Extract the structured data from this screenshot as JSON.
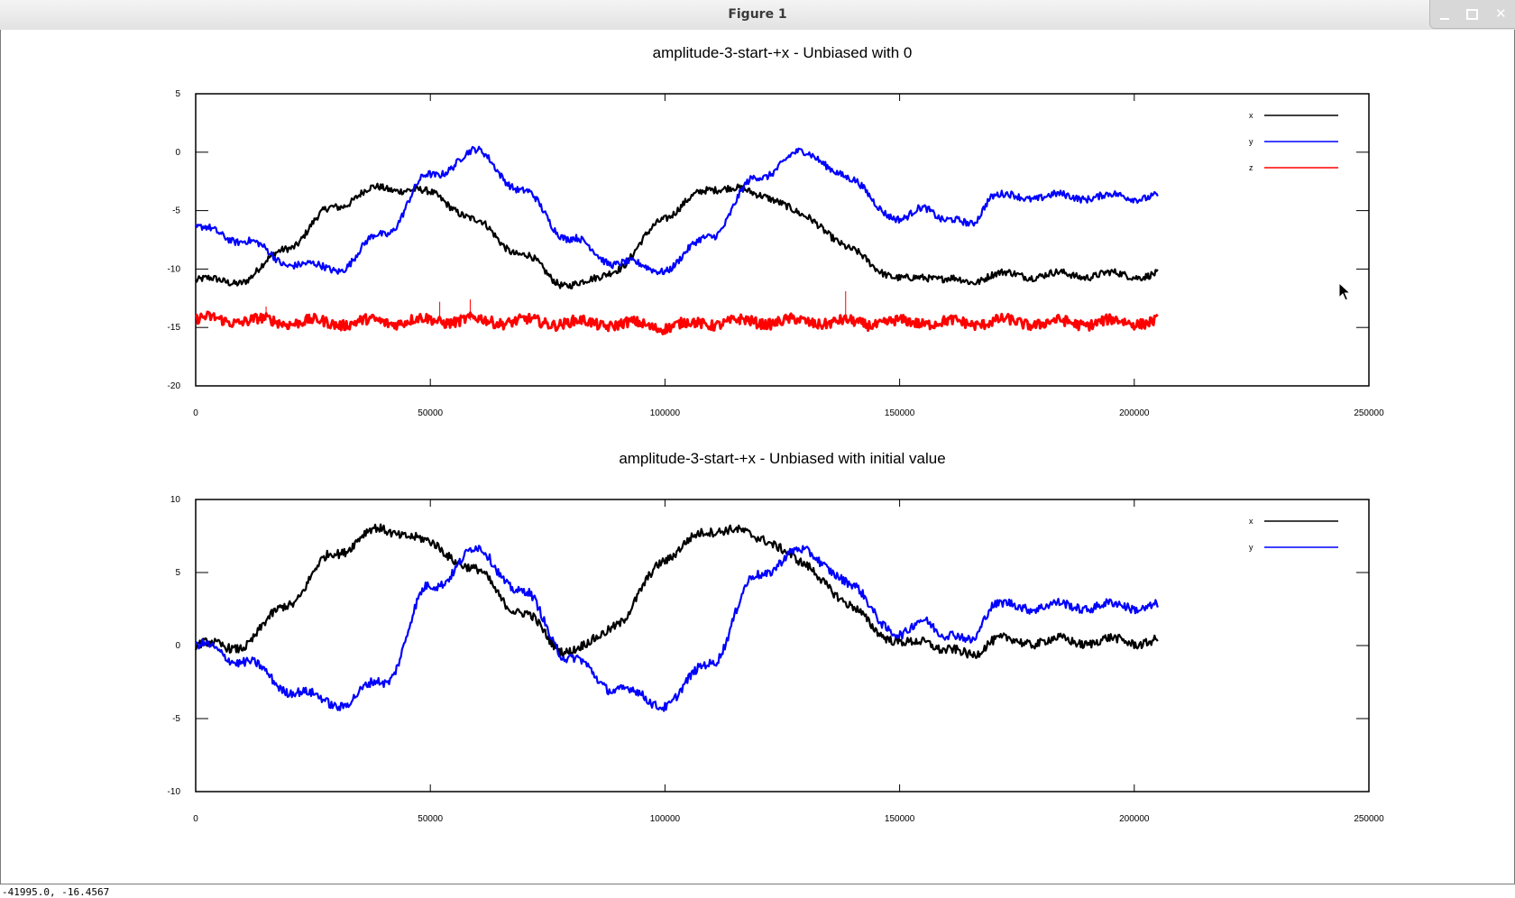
{
  "window": {
    "title": "Figure 1",
    "buttons": [
      "minimize",
      "maximize",
      "close"
    ]
  },
  "status_bar": {
    "coordinates": "-41995.0, -16.4567"
  },
  "colors": {
    "x": "#000000",
    "y": "#0000ff",
    "z": "#ff0000"
  },
  "chart_data": [
    {
      "type": "line",
      "title": "amplitude-3-start-+x - Unbiased with 0",
      "xlabel": "",
      "ylabel": "",
      "xlim": [
        0,
        250000
      ],
      "ylim": [
        -20,
        5
      ],
      "xticks": [
        "0",
        "50000",
        "100000",
        "150000",
        "200000",
        "250000"
      ],
      "yticks": [
        "5",
        "0",
        "-5",
        "-10",
        "-15",
        "-20"
      ],
      "legend": {
        "position": "top-right",
        "entries": [
          "x",
          "y",
          "z"
        ]
      },
      "grid": false,
      "x": [
        0,
        10000,
        20000,
        30000,
        40000,
        50000,
        60000,
        70000,
        80000,
        90000,
        100000,
        110000,
        120000,
        130000,
        140000,
        150000,
        155000,
        160000,
        165000,
        170000,
        180000,
        190000,
        200000,
        205000
      ],
      "series": [
        {
          "name": "x",
          "values": [
            -11,
            -11,
            -8,
            -4.5,
            -3,
            -3.5,
            -6,
            -9,
            -11.5,
            -10,
            -5.5,
            -3,
            -3.5,
            -5.5,
            -8.5,
            -11,
            -10.5,
            -11,
            -11,
            -10.5,
            -10.5,
            -10.5,
            -10.5,
            -10.5
          ]
        },
        {
          "name": "y",
          "values": [
            -6.5,
            -7.5,
            -9.5,
            -10,
            -7,
            -2,
            0,
            -3.5,
            -7.5,
            -9.5,
            -10,
            -7,
            -2,
            0,
            -2.5,
            -6,
            -4.5,
            -6,
            -6,
            -3.8,
            -3.8,
            -3.8,
            -3.8,
            -3.8
          ]
        },
        {
          "name": "z",
          "values": [
            -14.3,
            -14.4,
            -14.5,
            -14.6,
            -14.5,
            -14.4,
            -14.4,
            -14.5,
            -14.6,
            -14.7,
            -14.9,
            -14.6,
            -14.5,
            -14.5,
            -14.6,
            -14.6,
            -14.5,
            -14.6,
            -14.6,
            -14.5,
            -14.6,
            -14.6,
            -14.5,
            -14.5
          ]
        }
      ],
      "spikes": [
        {
          "series": "z",
          "x": 15000,
          "y": -13.2
        },
        {
          "series": "z",
          "x": 52000,
          "y": -12.8
        },
        {
          "series": "z",
          "x": 58500,
          "y": -12.6
        },
        {
          "series": "z",
          "x": 138500,
          "y": -11.9
        }
      ]
    },
    {
      "type": "line",
      "title": "amplitude-3-start-+x - Unbiased with initial value",
      "xlabel": "",
      "ylabel": "",
      "xlim": [
        0,
        250000
      ],
      "ylim": [
        -10,
        10
      ],
      "xticks": [
        "0",
        "50000",
        "100000",
        "150000",
        "200000",
        "250000"
      ],
      "yticks": [
        "10",
        "5",
        "0",
        "-5",
        "-10"
      ],
      "legend": {
        "position": "top-right",
        "entries": [
          "x",
          "y"
        ]
      },
      "grid": false,
      "x": [
        0,
        10000,
        20000,
        30000,
        40000,
        50000,
        60000,
        70000,
        80000,
        90000,
        100000,
        110000,
        120000,
        130000,
        140000,
        150000,
        155000,
        160000,
        165000,
        170000,
        180000,
        190000,
        200000,
        205000
      ],
      "series": [
        {
          "name": "x",
          "values": [
            0,
            0,
            3,
            6.5,
            8,
            7,
            5,
            2,
            -0.5,
            1.5,
            6,
            8,
            7.5,
            5.5,
            2.5,
            0,
            0.5,
            -0.5,
            -0.5,
            0.3,
            0.3,
            0.3,
            0.3,
            0.3
          ]
        },
        {
          "name": "y",
          "values": [
            0,
            -1,
            -3,
            -4,
            -2.5,
            4,
            6.5,
            3.5,
            -1,
            -3,
            -4,
            -1,
            5,
            6.5,
            4,
            0.5,
            2,
            0.5,
            0.5,
            2.7,
            2.7,
            2.7,
            2.7,
            2.7
          ]
        }
      ]
    }
  ]
}
